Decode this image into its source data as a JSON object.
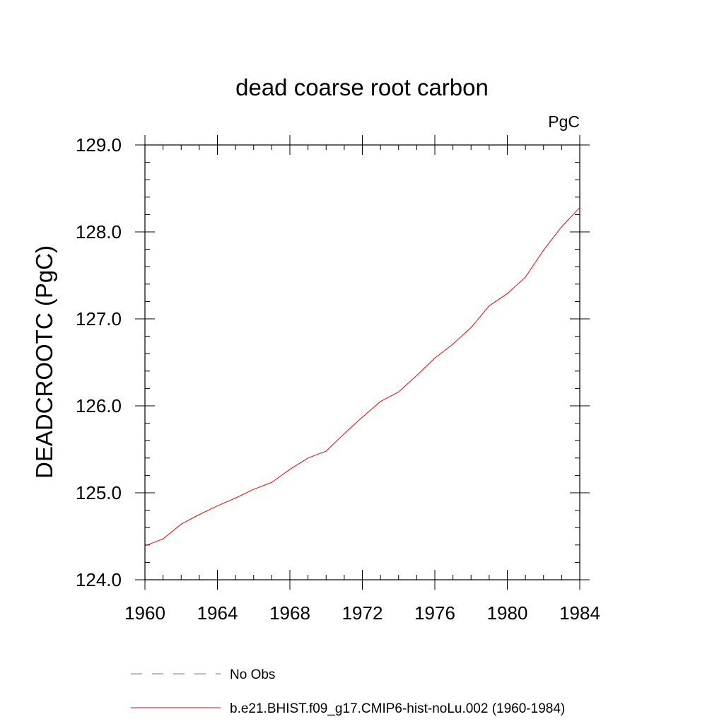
{
  "chart_data": {
    "type": "line",
    "title": "dead coarse root carbon",
    "units_label": "PgC",
    "xlabel": "",
    "ylabel": "DEADCROOTC  (PgC)",
    "xlim": [
      1960,
      1984
    ],
    "ylim": [
      124.0,
      129.0
    ],
    "x_ticks": [
      "1960",
      "1964",
      "1968",
      "1972",
      "1976",
      "1980",
      "1984"
    ],
    "y_ticks": [
      "124.0",
      "125.0",
      "126.0",
      "127.0",
      "128.0",
      "129.0"
    ],
    "grid": false,
    "legend_position": "bottom",
    "series": [
      {
        "name": "No Obs",
        "color": "#6b6bd6",
        "style": "dashed",
        "x": [],
        "y": []
      },
      {
        "name": "b.e21.BHIST.f09_g17.CMIP6-hist-noLu.002 (1960-1984)",
        "color": "#ff0000",
        "style": "solid",
        "x": [
          1960,
          1961,
          1962,
          1963,
          1964,
          1965,
          1966,
          1967,
          1968,
          1969,
          1970,
          1971,
          1972,
          1973,
          1974,
          1975,
          1976,
          1977,
          1978,
          1979,
          1980,
          1981,
          1982,
          1983,
          1984
        ],
        "y": [
          124.39,
          124.47,
          124.64,
          124.75,
          124.85,
          124.94,
          125.04,
          125.12,
          125.27,
          125.4,
          125.48,
          125.68,
          125.87,
          126.05,
          126.16,
          126.35,
          126.55,
          126.71,
          126.9,
          127.15,
          127.29,
          127.48,
          127.79,
          128.06,
          128.28
        ]
      }
    ]
  }
}
